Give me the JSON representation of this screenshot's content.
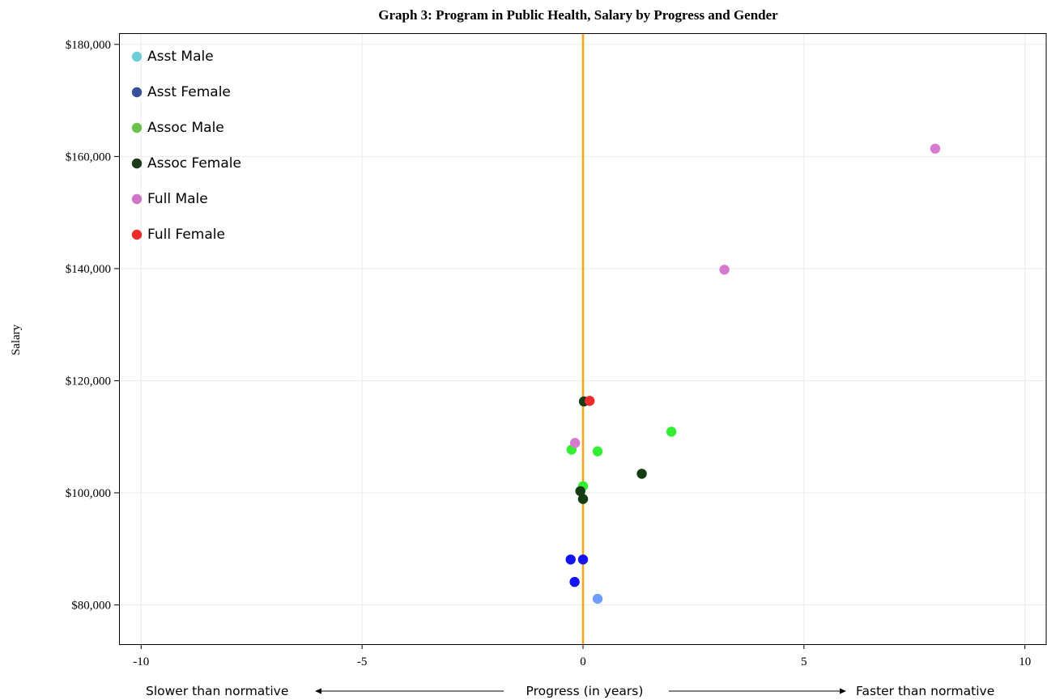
{
  "chart_data": {
    "type": "scatter",
    "title": "Graph 3: Program in Public Health, Salary by Progress and Gender",
    "xlabel": "Progress (in years)",
    "xlabel_left": "Slower than normative",
    "xlabel_right": "Faster than normative",
    "ylabel": "Salary",
    "xlim": [
      -10.5,
      10.5
    ],
    "ylim": [
      73000,
      182000
    ],
    "x_ticks": [
      {
        "value": -10,
        "label": "-10"
      },
      {
        "value": -5,
        "label": "-5"
      },
      {
        "value": 0,
        "label": "0"
      },
      {
        "value": 5,
        "label": "5"
      },
      {
        "value": 10,
        "label": "10"
      }
    ],
    "y_ticks": [
      {
        "value": 80000,
        "label": "$80,000"
      },
      {
        "value": 100000,
        "label": "$100,000"
      },
      {
        "value": 120000,
        "label": "$120,000"
      },
      {
        "value": 140000,
        "label": "$140,000"
      },
      {
        "value": 160000,
        "label": "$160,000"
      },
      {
        "value": 180000,
        "label": "$180,000"
      }
    ],
    "grid": true,
    "reference_line": {
      "x": 0,
      "color": "#ffa31a"
    },
    "legend_position": "top-left",
    "series": [
      {
        "name": "Asst Male",
        "legend_color": "#6fcdd8",
        "color": "#6f9dff",
        "points": [
          {
            "x": 0.33,
            "y": 81100
          }
        ]
      },
      {
        "name": "Asst Female",
        "legend_color": "#3a4f9e",
        "color": "#1414f0",
        "points": [
          {
            "x": -0.28,
            "y": 88100
          },
          {
            "x": 0.0,
            "y": 88100
          },
          {
            "x": -0.19,
            "y": 84100
          }
        ]
      },
      {
        "name": "Assoc Male",
        "legend_color": "#6cc24a",
        "color": "#33ee33",
        "points": [
          {
            "x": 2.0,
            "y": 110900
          },
          {
            "x": -0.26,
            "y": 107700
          },
          {
            "x": 0.33,
            "y": 107400
          },
          {
            "x": 0.0,
            "y": 101200
          }
        ]
      },
      {
        "name": "Assoc Female",
        "legend_color": "#1c3a1c",
        "color": "#143d14",
        "points": [
          {
            "x": 0.02,
            "y": 116300
          },
          {
            "x": 1.33,
            "y": 103400
          },
          {
            "x": -0.06,
            "y": 100300
          },
          {
            "x": 0.0,
            "y": 98900
          }
        ]
      },
      {
        "name": "Full Male",
        "legend_color": "#cf76c8",
        "color": "#d47bd0",
        "points": [
          {
            "x": 7.97,
            "y": 161400
          },
          {
            "x": 3.2,
            "y": 139800
          },
          {
            "x": -0.18,
            "y": 108900
          }
        ]
      },
      {
        "name": "Full Female",
        "legend_color": "#ee2b2b",
        "color": "#ee2b2b",
        "points": [
          {
            "x": 0.15,
            "y": 116400
          }
        ]
      }
    ]
  }
}
